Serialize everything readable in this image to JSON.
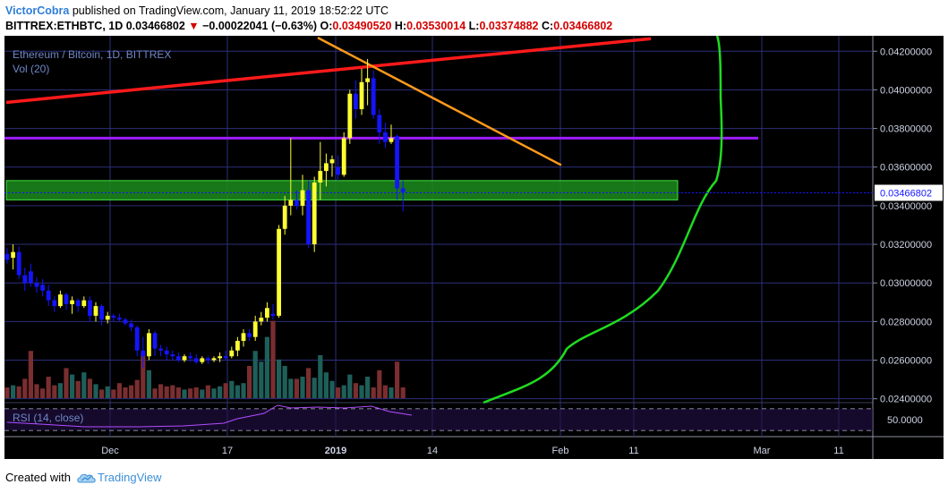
{
  "header": {
    "author": "VictorCobra",
    "published_text": "published on TradingView.com, January 11, 2019 18:52:22 UTC",
    "symbol": "BITTREX:ETHBTC, 1D",
    "last": "0.03466802",
    "change_arrow": "▼",
    "change": "−0.00022041 (−0.63%)",
    "o_label": "O:",
    "o_value": "0.03490520",
    "h_label": "H:",
    "h_value": "0.03530014",
    "l_label": "L:",
    "l_value": "0.03374882",
    "c_label": "C:",
    "c_value": "0.03466802"
  },
  "legend": {
    "title": "Ethereum / Bitcoin, 1D, BITTREX",
    "volume": "Vol (20)",
    "rsi": "RSI (14, close)"
  },
  "price_axis": {
    "ticks": [
      "0.04200000",
      "0.04000000",
      "0.03800000",
      "0.03600000",
      "0.03400000",
      "0.03200000",
      "0.03000000",
      "0.02800000",
      "0.02600000",
      "0.02400000"
    ],
    "current_price": "0.03466802"
  },
  "rsi_axis": {
    "label": "50.0000"
  },
  "time_axis": {
    "ticks": [
      "Dec",
      "17",
      "2019",
      "14",
      "Feb",
      "11",
      "Mar",
      "11"
    ]
  },
  "footer": {
    "created_with": "Created with",
    "brand": "TradingView"
  },
  "colors": {
    "up_candle": "#ffff33",
    "down_candle": "#1414ff",
    "trendline_red": "#ff1a1a",
    "trendline_orange": "#ff9a1a",
    "level_purple": "#9d1cff",
    "zone_green": "#1eaa1e",
    "curve_green": "#1fdc1f"
  },
  "chart_data": {
    "type": "candlestick",
    "symbol": "ETHBTC",
    "interval": "1D",
    "ylim": [
      0.0238,
      0.0428
    ],
    "ohlc": [
      {
        "o": 0.0315,
        "h": 0.0318,
        "l": 0.031,
        "c": 0.0312
      },
      {
        "o": 0.0313,
        "h": 0.032,
        "l": 0.0307,
        "c": 0.0316
      },
      {
        "o": 0.0316,
        "h": 0.0319,
        "l": 0.0302,
        "c": 0.0304
      },
      {
        "o": 0.0304,
        "h": 0.0308,
        "l": 0.0296,
        "c": 0.03
      },
      {
        "o": 0.0306,
        "h": 0.031,
        "l": 0.0298,
        "c": 0.03
      },
      {
        "o": 0.03,
        "h": 0.0303,
        "l": 0.0295,
        "c": 0.0298
      },
      {
        "o": 0.0299,
        "h": 0.0302,
        "l": 0.0293,
        "c": 0.0296
      },
      {
        "o": 0.0296,
        "h": 0.0299,
        "l": 0.0288,
        "c": 0.0291
      },
      {
        "o": 0.0291,
        "h": 0.0293,
        "l": 0.0285,
        "c": 0.0288
      },
      {
        "o": 0.0288,
        "h": 0.0296,
        "l": 0.0287,
        "c": 0.0294
      },
      {
        "o": 0.0294,
        "h": 0.0295,
        "l": 0.0286,
        "c": 0.0289
      },
      {
        "o": 0.0289,
        "h": 0.0293,
        "l": 0.0284,
        "c": 0.0291
      },
      {
        "o": 0.0291,
        "h": 0.0292,
        "l": 0.0285,
        "c": 0.0288
      },
      {
        "o": 0.0288,
        "h": 0.0293,
        "l": 0.0287,
        "c": 0.0291
      },
      {
        "o": 0.0291,
        "h": 0.0293,
        "l": 0.028,
        "c": 0.0283
      },
      {
        "o": 0.0283,
        "h": 0.029,
        "l": 0.028,
        "c": 0.0288
      },
      {
        "o": 0.0288,
        "h": 0.0289,
        "l": 0.0278,
        "c": 0.0281
      },
      {
        "o": 0.0281,
        "h": 0.0285,
        "l": 0.0279,
        "c": 0.0283
      },
      {
        "o": 0.0283,
        "h": 0.0284,
        "l": 0.028,
        "c": 0.0282
      },
      {
        "o": 0.0282,
        "h": 0.0284,
        "l": 0.028,
        "c": 0.0281
      },
      {
        "o": 0.0281,
        "h": 0.0282,
        "l": 0.0278,
        "c": 0.0279
      },
      {
        "o": 0.0279,
        "h": 0.0281,
        "l": 0.0275,
        "c": 0.0277
      },
      {
        "o": 0.0277,
        "h": 0.0278,
        "l": 0.0262,
        "c": 0.0265
      },
      {
        "o": 0.0265,
        "h": 0.0272,
        "l": 0.0256,
        "c": 0.0262
      },
      {
        "o": 0.0262,
        "h": 0.0276,
        "l": 0.026,
        "c": 0.0274
      },
      {
        "o": 0.0274,
        "h": 0.0275,
        "l": 0.0262,
        "c": 0.0266
      },
      {
        "o": 0.0266,
        "h": 0.0268,
        "l": 0.0262,
        "c": 0.0265
      },
      {
        "o": 0.0265,
        "h": 0.0267,
        "l": 0.026,
        "c": 0.0263
      },
      {
        "o": 0.0263,
        "h": 0.0265,
        "l": 0.026,
        "c": 0.0262
      },
      {
        "o": 0.0262,
        "h": 0.0264,
        "l": 0.0259,
        "c": 0.026
      },
      {
        "o": 0.026,
        "h": 0.0263,
        "l": 0.0259,
        "c": 0.0262
      },
      {
        "o": 0.0262,
        "h": 0.0264,
        "l": 0.0259,
        "c": 0.0261
      },
      {
        "o": 0.0261,
        "h": 0.0263,
        "l": 0.0258,
        "c": 0.0259
      },
      {
        "o": 0.0259,
        "h": 0.0262,
        "l": 0.0258,
        "c": 0.0261
      },
      {
        "o": 0.0261,
        "h": 0.0262,
        "l": 0.0258,
        "c": 0.026
      },
      {
        "o": 0.026,
        "h": 0.0262,
        "l": 0.0259,
        "c": 0.0261
      },
      {
        "o": 0.0261,
        "h": 0.0264,
        "l": 0.0259,
        "c": 0.0262
      },
      {
        "o": 0.0262,
        "h": 0.0265,
        "l": 0.026,
        "c": 0.0261
      },
      {
        "o": 0.0262,
        "h": 0.0267,
        "l": 0.0261,
        "c": 0.0265
      },
      {
        "o": 0.0265,
        "h": 0.0272,
        "l": 0.0262,
        "c": 0.027
      },
      {
        "o": 0.027,
        "h": 0.0276,
        "l": 0.0267,
        "c": 0.0274
      },
      {
        "o": 0.0274,
        "h": 0.0276,
        "l": 0.027,
        "c": 0.0272
      },
      {
        "o": 0.0272,
        "h": 0.0283,
        "l": 0.027,
        "c": 0.028
      },
      {
        "o": 0.028,
        "h": 0.0285,
        "l": 0.0278,
        "c": 0.0282
      },
      {
        "o": 0.0282,
        "h": 0.029,
        "l": 0.028,
        "c": 0.0287
      },
      {
        "o": 0.0284,
        "h": 0.0289,
        "l": 0.0281,
        "c": 0.0283
      },
      {
        "o": 0.0283,
        "h": 0.033,
        "l": 0.0282,
        "c": 0.0328
      },
      {
        "o": 0.0328,
        "h": 0.0345,
        "l": 0.0325,
        "c": 0.034
      },
      {
        "o": 0.034,
        "h": 0.0375,
        "l": 0.0335,
        "c": 0.0343
      },
      {
        "o": 0.0343,
        "h": 0.0348,
        "l": 0.0338,
        "c": 0.034
      },
      {
        "o": 0.034,
        "h": 0.0356,
        "l": 0.0335,
        "c": 0.0348
      },
      {
        "o": 0.0348,
        "h": 0.0353,
        "l": 0.0318,
        "c": 0.032
      },
      {
        "o": 0.032,
        "h": 0.0355,
        "l": 0.0316,
        "c": 0.0352
      },
      {
        "o": 0.0352,
        "h": 0.0373,
        "l": 0.0343,
        "c": 0.0358
      },
      {
        "o": 0.0358,
        "h": 0.0367,
        "l": 0.035,
        "c": 0.0362
      },
      {
        "o": 0.0362,
        "h": 0.0366,
        "l": 0.0355,
        "c": 0.0364
      },
      {
        "o": 0.036,
        "h": 0.0366,
        "l": 0.0353,
        "c": 0.0356
      },
      {
        "o": 0.0356,
        "h": 0.0378,
        "l": 0.0355,
        "c": 0.0375
      },
      {
        "o": 0.0375,
        "h": 0.04,
        "l": 0.0372,
        "c": 0.0398
      },
      {
        "o": 0.0398,
        "h": 0.0405,
        "l": 0.0385,
        "c": 0.039
      },
      {
        "o": 0.039,
        "h": 0.0411,
        "l": 0.0387,
        "c": 0.0404
      },
      {
        "o": 0.0404,
        "h": 0.0416,
        "l": 0.0392,
        "c": 0.0406
      },
      {
        "o": 0.0406,
        "h": 0.041,
        "l": 0.0385,
        "c": 0.0387
      },
      {
        "o": 0.0387,
        "h": 0.039,
        "l": 0.0372,
        "c": 0.0378
      },
      {
        "o": 0.0378,
        "h": 0.0383,
        "l": 0.037,
        "c": 0.0373
      },
      {
        "o": 0.0373,
        "h": 0.0382,
        "l": 0.0372,
        "c": 0.0375
      },
      {
        "o": 0.0376,
        "h": 0.0377,
        "l": 0.0343,
        "c": 0.0349
      },
      {
        "o": 0.0349,
        "h": 0.0353,
        "l": 0.0337,
        "c": 0.0347
      }
    ],
    "volume": [
      0.1,
      0.12,
      0.11,
      0.18,
      0.44,
      0.13,
      0.09,
      0.2,
      0.12,
      0.14,
      0.28,
      0.22,
      0.16,
      0.24,
      0.18,
      0.13,
      0.08,
      0.11,
      0.08,
      0.14,
      0.1,
      0.12,
      0.17,
      0.42,
      0.26,
      0.09,
      0.13,
      0.11,
      0.12,
      0.1,
      0.08,
      0.09,
      0.1,
      0.08,
      0.12,
      0.09,
      0.11,
      0.14,
      0.16,
      0.12,
      0.14,
      0.3,
      0.44,
      0.34,
      0.57,
      0.72,
      0.36,
      0.3,
      0.18,
      0.18,
      0.2,
      0.28,
      0.19,
      0.4,
      0.24,
      0.16,
      0.1,
      0.12,
      0.22,
      0.14,
      0.12,
      0.2,
      0.1,
      0.26,
      0.12,
      0.1,
      0.34,
      0.1
    ],
    "horizontal_levels": [
      0.0375
    ],
    "zone": [
      0.0343,
      0.0353
    ]
  }
}
